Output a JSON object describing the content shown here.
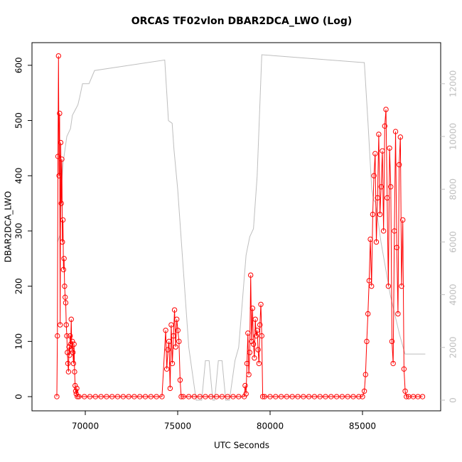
{
  "chart_data": {
    "type": "line",
    "title": "ORCAS TF02vlon DBAR2DCA_LWO (Log)",
    "xlabel": "UTC Seconds",
    "ylabel": "DBAR2DCA_LWO",
    "xlim": [
      67115,
      89231
    ],
    "xticks": [
      70000,
      75000,
      80000,
      85000
    ],
    "ylim": [
      -25.7,
      641
    ],
    "yticks": [
      0,
      100,
      200,
      300,
      400,
      500,
      600
    ],
    "y2lim": [
      -404,
      13558
    ],
    "y2ticks": [
      0,
      2000,
      4000,
      6000,
      8000,
      10000,
      12000
    ],
    "series": [
      {
        "color": "#bebebe",
        "axis": "y2",
        "x": [
          68500,
          68650,
          68700,
          68800,
          68900,
          69000,
          69200,
          69300,
          69450,
          69600,
          69700,
          69850,
          70200,
          70500,
          74300,
          74500,
          74700,
          74800,
          75000,
          75600,
          76000,
          76300,
          76500,
          76700,
          76900,
          77000,
          77200,
          77400,
          77600,
          77800,
          78100,
          78300,
          78700,
          78900,
          79100,
          79300,
          79550,
          85100,
          85300,
          85500,
          85600,
          85700,
          86000,
          86500,
          87000,
          87300,
          88400
        ],
        "values": [
          6000,
          6300,
          8000,
          9000,
          9500,
          10000,
          10300,
          10800,
          11000,
          11200,
          11500,
          12000,
          12000,
          12500,
          12900,
          10600,
          10500,
          9500,
          8000,
          2000,
          0,
          0,
          1500,
          1500,
          0,
          0,
          1500,
          1500,
          0,
          0,
          1500,
          2000,
          5500,
          6200,
          6500,
          8500,
          13100,
          12800,
          10500,
          8000,
          7600,
          7500,
          6000,
          4000,
          2500,
          1750,
          1750
        ]
      },
      {
        "color": "#ff0000",
        "markers": true,
        "x": [
          68460,
          68490,
          68520,
          68550,
          68580,
          68610,
          68640,
          68670,
          68700,
          68730,
          68760,
          68790,
          68820,
          68850,
          68880,
          68910,
          68940,
          68970,
          69000,
          69030,
          69060,
          69090,
          69120,
          69150,
          69180,
          69210,
          69240,
          69270,
          69300,
          69330,
          69360,
          69390,
          69420,
          69450,
          69480,
          69510,
          69540,
          69570,
          69650,
          69950,
          70250,
          70550,
          70850,
          71150,
          71450,
          71750,
          72050,
          72350,
          72650,
          72950,
          73250,
          73550,
          73850,
          74150,
          74350,
          74410,
          74470,
          74530,
          74590,
          74650,
          74710,
          74770,
          74830,
          74890,
          74950,
          75010,
          75070,
          75130,
          75190,
          75300,
          75600,
          75900,
          76200,
          76500,
          76800,
          77100,
          77400,
          77700,
          78000,
          78300,
          78600,
          78650,
          78700,
          78750,
          78800,
          78850,
          78900,
          78950,
          79000,
          79050,
          79100,
          79150,
          79200,
          79250,
          79300,
          79350,
          79400,
          79450,
          79500,
          79550,
          79600,
          79700,
          80000,
          80300,
          80600,
          80900,
          81200,
          81500,
          81800,
          82100,
          82400,
          82700,
          83000,
          83300,
          83600,
          83900,
          84200,
          84500,
          84800,
          85000,
          85100,
          85165,
          85230,
          85295,
          85360,
          85425,
          85490,
          85555,
          85620,
          85685,
          85750,
          85815,
          85880,
          85945,
          86010,
          86075,
          86140,
          86205,
          86270,
          86335,
          86400,
          86465,
          86530,
          86595,
          86660,
          86725,
          86790,
          86855,
          86920,
          86985,
          87050,
          87115,
          87180,
          87245,
          87310,
          87375,
          87500,
          87750,
          88000,
          88250
        ],
        "values": [
          0,
          110,
          435,
          617,
          400,
          513,
          130,
          460,
          350,
          430,
          280,
          320,
          230,
          250,
          200,
          180,
          170,
          130,
          110,
          80,
          60,
          45,
          90,
          75,
          110,
          95,
          140,
          85,
          100,
          80,
          60,
          95,
          45,
          20,
          10,
          5,
          15,
          0,
          0,
          0,
          0,
          0,
          0,
          0,
          0,
          0,
          0,
          0,
          0,
          0,
          0,
          0,
          0,
          0,
          120,
          50,
          85,
          100,
          15,
          130,
          60,
          110,
          157,
          90,
          140,
          120,
          100,
          30,
          0,
          0,
          0,
          0,
          0,
          0,
          0,
          0,
          0,
          0,
          0,
          0,
          0,
          20,
          5,
          60,
          115,
          40,
          80,
          220,
          100,
          160,
          95,
          70,
          140,
          110,
          120,
          85,
          60,
          130,
          167,
          110,
          0,
          0,
          0,
          0,
          0,
          0,
          0,
          0,
          0,
          0,
          0,
          0,
          0,
          0,
          0,
          0,
          0,
          0,
          0,
          0,
          10,
          40,
          100,
          150,
          210,
          285,
          200,
          330,
          400,
          440,
          280,
          360,
          475,
          330,
          380,
          445,
          300,
          490,
          520,
          360,
          200,
          450,
          380,
          100,
          60,
          300,
          480,
          270,
          150,
          420,
          470,
          200,
          320,
          50,
          10,
          0,
          0,
          0,
          0,
          0
        ]
      }
    ]
  }
}
